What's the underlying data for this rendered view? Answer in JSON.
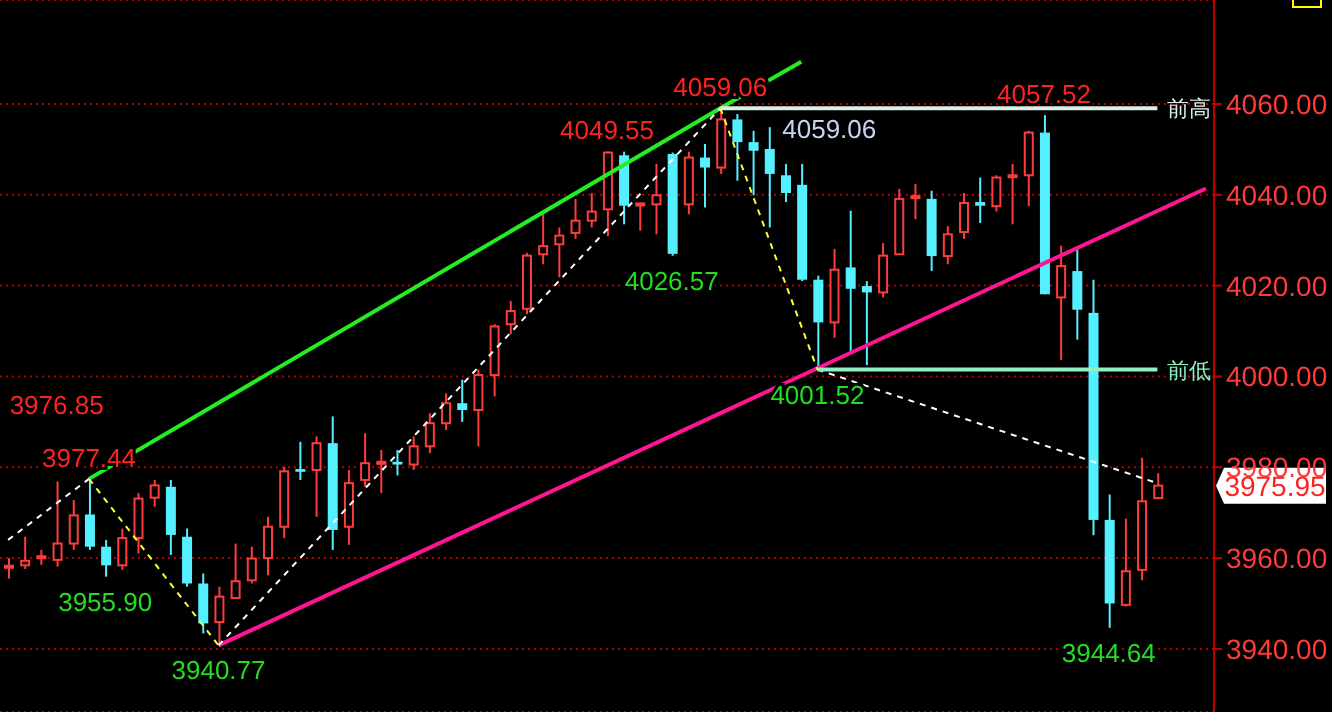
{
  "chart_data": {
    "type": "candlestick",
    "categories": [
      null,
      null,
      null,
      null,
      null,
      null,
      null,
      null,
      null,
      null,
      null,
      null,
      null,
      null,
      null,
      null,
      null,
      null,
      null,
      null,
      null,
      null,
      null,
      null,
      null,
      null,
      null,
      null,
      null,
      null,
      null,
      null,
      null,
      null,
      null,
      null,
      null,
      null,
      null,
      null,
      null,
      null,
      null,
      null,
      null,
      null,
      null,
      null,
      null,
      null,
      null,
      null,
      null,
      null,
      null,
      null,
      null,
      null,
      null,
      null,
      null,
      null,
      null,
      null,
      null,
      null,
      null,
      null,
      null,
      null,
      null,
      null,
      null,
      null,
      null
    ],
    "ohlc": [
      [
        3958,
        3960,
        3955.5,
        3958.3
      ],
      [
        3958.4,
        3964.7,
        3957.6,
        3959.4
      ],
      [
        3960.1,
        3961.8,
        3958.5,
        3960.4
      ],
      [
        3959.6,
        3976.85,
        3958.1,
        3963.2
      ],
      [
        3963.2,
        3972.8,
        3961.8,
        3969.4
      ],
      [
        3969.6,
        3977.44,
        3961.8,
        3962.5
      ],
      [
        3962.5,
        3964,
        3955.9,
        3958.4
      ],
      [
        3958.4,
        3966.5,
        3957.4,
        3964.4
      ],
      [
        3964.4,
        3974.3,
        3961,
        3973.1
      ],
      [
        3973.3,
        3977.2,
        3971.3,
        3976
      ],
      [
        3975.7,
        3977.2,
        3960.7,
        3965.1
      ],
      [
        3964.7,
        3966.5,
        3953.7,
        3954.4
      ],
      [
        3954.4,
        3956.6,
        3943.4,
        3945.6
      ],
      [
        3945.9,
        3953.7,
        3940.77,
        3951.5
      ],
      [
        3951.2,
        3963.2,
        3951.2,
        3954.9
      ],
      [
        3955.1,
        3962.5,
        3954.4,
        3959.9
      ],
      [
        3960,
        3969.1,
        3956.2,
        3966.9
      ],
      [
        3966.9,
        3980.1,
        3964.4,
        3979.1
      ],
      [
        3979.6,
        3985.6,
        3977.2,
        3979
      ],
      [
        3979.4,
        3986.8,
        3969.1,
        3985.3
      ],
      [
        3985.3,
        3991.2,
        3961.8,
        3966.2
      ],
      [
        3966.9,
        3979.4,
        3962.9,
        3976.5
      ],
      [
        3977.2,
        3987.5,
        3975.7,
        3980.9
      ],
      [
        3980.9,
        3983.8,
        3974.3,
        3981.2
      ],
      [
        3981.2,
        3983.8,
        3978.2,
        3980.6
      ],
      [
        3980.6,
        3986.8,
        3979.4,
        3984.6
      ],
      [
        3984.6,
        3991.9,
        3983.1,
        3989.7
      ],
      [
        3989.7,
        3996.3,
        3988.2,
        3994.1
      ],
      [
        3994.1,
        3999.3,
        3990,
        3992.6
      ],
      [
        3992.6,
        4001.5,
        3984.6,
        4000.3
      ],
      [
        4000.3,
        4011.5,
        3995.6,
        4011
      ],
      [
        4011.5,
        4016.6,
        4009.3,
        4014.4
      ],
      [
        4014.9,
        4027.2,
        4013.7,
        4026.6
      ],
      [
        4026.9,
        4035.7,
        4024.7,
        4028.7
      ],
      [
        4029.1,
        4032.8,
        4021.8,
        4031
      ],
      [
        4031.6,
        4039.1,
        4030.3,
        4034.3
      ],
      [
        4034.3,
        4040.4,
        4032.8,
        4036.3
      ],
      [
        4036.8,
        4049.55,
        4030.9,
        4049.3
      ],
      [
        4048.7,
        4049.5,
        4033.5,
        4037.6
      ],
      [
        4037.9,
        4038.1,
        4032.1,
        4038.1
      ],
      [
        4037.9,
        4046.8,
        4031.3,
        4039.9
      ],
      [
        4049,
        4049.3,
        4026.57,
        4027
      ],
      [
        4037.9,
        4049.5,
        4035.7,
        4048.2
      ],
      [
        4048.2,
        4051.2,
        4037.2,
        4046
      ],
      [
        4046,
        4059.06,
        4044.6,
        4056.6
      ],
      [
        4056.6,
        4057.8,
        4043.1,
        4051.6
      ],
      [
        4051.6,
        4054.1,
        4039.9,
        4049.7
      ],
      [
        4050.1,
        4054.9,
        4032.8,
        4044.6
      ],
      [
        4044.3,
        4046.8,
        4038.4,
        4040.4
      ],
      [
        4042.2,
        4046.8,
        4021,
        4021.3
      ],
      [
        4021.3,
        4022.2,
        4001.52,
        4011.9
      ],
      [
        4011.9,
        4028.1,
        4008.5,
        4023.5
      ],
      [
        4024,
        4036.5,
        4005,
        4019.3
      ],
      [
        4019.9,
        4021,
        4002.5,
        4018.5
      ],
      [
        4018.5,
        4029.4,
        4017.4,
        4026.6
      ],
      [
        4026.9,
        4041.3,
        4026.9,
        4039.1
      ],
      [
        4039.4,
        4042.4,
        4034.6,
        4039.7
      ],
      [
        4039.1,
        4040.9,
        4023.2,
        4026.5
      ],
      [
        4026.5,
        4033.1,
        4024.7,
        4031.3
      ],
      [
        4031.8,
        4040.4,
        4030.3,
        4038.2
      ],
      [
        4038.4,
        4043.8,
        4033.8,
        4037.6
      ],
      [
        4037.5,
        4044.3,
        4036.3,
        4043.8
      ],
      [
        4044.1,
        4046.8,
        4033.5,
        4044.3
      ],
      [
        4044.3,
        4054.1,
        4037.5,
        4053.7
      ],
      [
        4053.7,
        4057.52,
        4018.1,
        4018.1
      ],
      [
        4017.4,
        4028.8,
        4003.6,
        4024.3
      ],
      [
        4023.2,
        4028.4,
        4008.1,
        4014.7
      ],
      [
        4014,
        4021.3,
        3965,
        3968.4
      ],
      [
        3968.4,
        3974,
        3944.64,
        3950
      ],
      [
        3949.7,
        3968.7,
        3949.3,
        3957.1
      ],
      [
        3957.4,
        3982.1,
        3955.1,
        3972.5
      ],
      [
        3973.2,
        3978.7,
        3973.2,
        3975.95
      ],
      null,
      null,
      null
    ],
    "series": [
      {
        "type": "line",
        "color": "#22ee22",
        "line_style": "solid",
        "values": [
          null,
          null,
          null,
          null,
          null,
          3977.44,
          null,
          null,
          null,
          null,
          null,
          null,
          null,
          null,
          null,
          null,
          null,
          null,
          null,
          null,
          null,
          null,
          null,
          null,
          null,
          null,
          null,
          null,
          null,
          null,
          null,
          null,
          null,
          null,
          null,
          null,
          null,
          null,
          null,
          null,
          null,
          null,
          null,
          null,
          4059.06,
          null,
          null,
          null,
          null,
          4069.3,
          null,
          null,
          null,
          null,
          null,
          null,
          null,
          null,
          null,
          null,
          null,
          null,
          null,
          null,
          null,
          null,
          null,
          null,
          null,
          null,
          null,
          null,
          null,
          null,
          null
        ]
      },
      {
        "type": "line",
        "color": "#ff1493",
        "line_style": "solid",
        "values": [
          null,
          null,
          null,
          null,
          null,
          null,
          null,
          null,
          null,
          null,
          null,
          null,
          null,
          3940.77,
          null,
          null,
          null,
          null,
          null,
          null,
          null,
          null,
          null,
          null,
          null,
          null,
          null,
          null,
          null,
          null,
          null,
          null,
          null,
          null,
          null,
          null,
          null,
          null,
          null,
          null,
          null,
          null,
          null,
          null,
          null,
          null,
          null,
          null,
          null,
          null,
          null,
          null,
          null,
          null,
          null,
          null,
          null,
          null,
          null,
          null,
          null,
          null,
          null,
          null,
          null,
          null,
          null,
          null,
          null,
          null,
          null,
          null,
          null,
          null,
          4041.4
        ]
      },
      {
        "type": "line",
        "color": "#ffffff",
        "line_style": "dashed",
        "values": [
          3964,
          null,
          null,
          null,
          null,
          3977.44,
          null,
          null,
          null,
          null,
          null,
          null,
          null,
          null,
          null,
          null,
          null,
          null,
          null,
          null,
          null,
          null,
          null,
          null,
          null,
          null,
          null,
          null,
          null,
          null,
          null,
          null,
          null,
          null,
          null,
          null,
          null,
          null,
          null,
          null,
          null,
          null,
          null,
          null,
          null,
          null,
          null,
          null,
          null,
          null,
          null,
          null,
          null,
          null,
          null,
          null,
          null,
          null,
          null,
          null,
          null,
          null,
          null,
          null,
          null,
          null,
          null,
          null,
          null,
          null,
          null,
          null,
          null,
          null,
          null
        ]
      },
      {
        "type": "line",
        "color": "#ffff33",
        "line_style": "dashed",
        "values": [
          null,
          null,
          null,
          null,
          null,
          3977.44,
          null,
          null,
          null,
          null,
          null,
          null,
          null,
          3940.77,
          null,
          null,
          null,
          null,
          null,
          null,
          null,
          null,
          null,
          null,
          null,
          null,
          null,
          null,
          null,
          null,
          null,
          null,
          null,
          null,
          null,
          null,
          null,
          null,
          null,
          null,
          null,
          null,
          null,
          null,
          null,
          null,
          null,
          null,
          null,
          null,
          null,
          null,
          null,
          null,
          null,
          null,
          null,
          null,
          null,
          null,
          null,
          null,
          null,
          null,
          null,
          null,
          null,
          null,
          null,
          null,
          null,
          null,
          null,
          null,
          null
        ]
      },
      {
        "type": "line",
        "color": "#ffffff",
        "line_style": "dashed",
        "values": [
          null,
          null,
          null,
          null,
          null,
          null,
          null,
          null,
          null,
          null,
          null,
          null,
          null,
          3940.77,
          null,
          null,
          null,
          null,
          null,
          null,
          null,
          null,
          null,
          null,
          null,
          null,
          null,
          null,
          null,
          null,
          null,
          null,
          null,
          null,
          null,
          null,
          null,
          null,
          null,
          null,
          null,
          null,
          null,
          null,
          4059.06,
          null,
          null,
          null,
          null,
          null,
          null,
          null,
          null,
          null,
          null,
          null,
          null,
          null,
          null,
          null,
          null,
          null,
          null,
          null,
          null,
          null,
          null,
          null,
          null,
          null,
          null,
          null,
          null,
          null,
          null
        ]
      },
      {
        "type": "line",
        "color": "#ffff33",
        "line_style": "dashed",
        "values": [
          null,
          null,
          null,
          null,
          null,
          null,
          null,
          null,
          null,
          null,
          null,
          null,
          null,
          null,
          null,
          null,
          null,
          null,
          null,
          null,
          null,
          null,
          null,
          null,
          null,
          null,
          null,
          null,
          null,
          null,
          null,
          null,
          null,
          null,
          null,
          null,
          null,
          null,
          null,
          null,
          null,
          null,
          null,
          null,
          4059.06,
          null,
          null,
          null,
          null,
          null,
          4001.52,
          null,
          null,
          null,
          null,
          null,
          null,
          null,
          null,
          null,
          null,
          null,
          null,
          null,
          null,
          null,
          null,
          null,
          null,
          null,
          null,
          null,
          null,
          null,
          null
        ]
      },
      {
        "type": "line",
        "color": "#ffffff",
        "line_style": "dashed",
        "values": [
          null,
          null,
          null,
          null,
          null,
          null,
          null,
          null,
          null,
          null,
          null,
          null,
          null,
          null,
          null,
          null,
          null,
          null,
          null,
          null,
          null,
          null,
          null,
          null,
          null,
          null,
          null,
          null,
          null,
          null,
          null,
          null,
          null,
          null,
          null,
          null,
          null,
          null,
          null,
          null,
          null,
          null,
          null,
          null,
          null,
          null,
          null,
          null,
          null,
          null,
          4001.52,
          null,
          null,
          null,
          null,
          null,
          null,
          null,
          null,
          null,
          null,
          null,
          null,
          null,
          null,
          null,
          null,
          null,
          null,
          null,
          null,
          3976.5,
          null,
          null,
          null
        ]
      },
      {
        "type": "line",
        "name": "前高",
        "color": "#d8f0e8",
        "line_style": "solid",
        "values": [
          null,
          null,
          null,
          null,
          null,
          null,
          null,
          null,
          null,
          null,
          null,
          null,
          null,
          null,
          null,
          null,
          null,
          null,
          null,
          null,
          null,
          null,
          null,
          null,
          null,
          null,
          null,
          null,
          null,
          null,
          null,
          null,
          null,
          null,
          null,
          null,
          null,
          null,
          null,
          null,
          null,
          null,
          null,
          null,
          4059.06,
          null,
          null,
          null,
          null,
          null,
          null,
          null,
          null,
          null,
          null,
          null,
          null,
          null,
          null,
          null,
          null,
          null,
          null,
          null,
          null,
          null,
          null,
          null,
          null,
          null,
          null,
          4059.06,
          null,
          null,
          null
        ]
      },
      {
        "type": "line",
        "name": "前低",
        "color": "#90f0c0",
        "line_style": "solid",
        "values": [
          null,
          null,
          null,
          null,
          null,
          null,
          null,
          null,
          null,
          null,
          null,
          null,
          null,
          null,
          null,
          null,
          null,
          null,
          null,
          null,
          null,
          null,
          null,
          null,
          null,
          null,
          null,
          null,
          null,
          null,
          null,
          null,
          null,
          null,
          null,
          null,
          null,
          null,
          null,
          null,
          null,
          null,
          null,
          null,
          null,
          null,
          null,
          null,
          null,
          null,
          4001.52,
          null,
          null,
          null,
          null,
          null,
          null,
          null,
          null,
          null,
          null,
          null,
          null,
          null,
          null,
          null,
          null,
          null,
          null,
          null,
          null,
          4001.52,
          null,
          null,
          null
        ]
      }
    ],
    "annotations": [
      {
        "text": "3977.44",
        "y": 3977.44
      },
      {
        "text": "3976.85",
        "y": 3976.85
      },
      {
        "text": "3955.90",
        "y": 3955.9
      },
      {
        "text": "3940.77",
        "y": 3940.77
      },
      {
        "text": "4049.55",
        "y": 4049.55
      },
      {
        "text": "4026.57",
        "y": 4026.57
      },
      {
        "text": "4059.06",
        "y": 4059.06
      },
      {
        "text": "4059.06",
        "y": 4059.06
      },
      {
        "text": "4057.52",
        "y": 4057.52
      },
      {
        "text": "4001.52",
        "y": 4001.52
      },
      {
        "text": "3944.64",
        "y": 3944.64
      },
      "3975.95"
    ],
    "ylim": [
      3926.1,
      4082.9
    ],
    "yticks": [
      {
        "value": 3940,
        "label": "3940.00"
      },
      {
        "value": 3960,
        "label": "3960.00"
      },
      {
        "value": 3980,
        "label": "3980.00"
      },
      {
        "value": 4000,
        "label": "4000.00"
      },
      {
        "value": 4020,
        "label": "4020.00"
      },
      {
        "value": 4040,
        "label": "4040.00"
      },
      {
        "value": 4060,
        "label": "4060.00"
      }
    ],
    "grid": "y",
    "tick_labels": "y",
    "marker": "none"
  }
}
